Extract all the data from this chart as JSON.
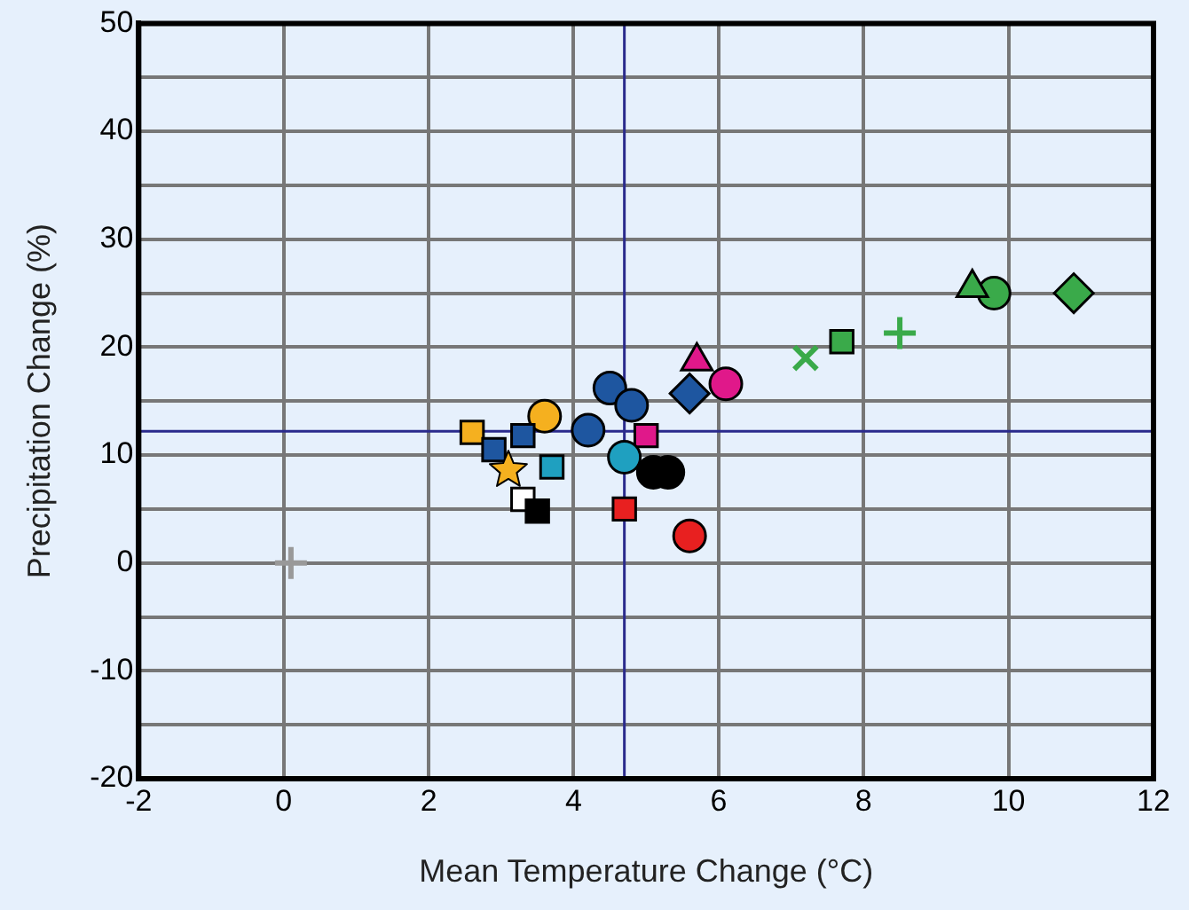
{
  "chart_data": {
    "type": "scatter",
    "xlabel": "Mean Temperature Change (°C)",
    "ylabel": "Precipitation Change (%)",
    "xlim": [
      -2,
      12
    ],
    "xticks": [
      -2,
      0,
      2,
      4,
      6,
      8,
      10,
      12
    ],
    "ylim": [
      -20,
      50
    ],
    "yticks": [
      -20,
      {
        "value": -15,
        "label": null
      },
      -10,
      {
        "value": -5,
        "label": null
      },
      0,
      {
        "value": 5,
        "label": null
      },
      10,
      {
        "value": 15,
        "label": null
      },
      20,
      {
        "value": 25,
        "label": null
      },
      30,
      {
        "value": 35,
        "label": null
      },
      40,
      {
        "value": 45,
        "label": null
      },
      50
    ],
    "grid": true,
    "legend": false,
    "ref_lines": [
      {
        "axis": "x",
        "value": 4.7,
        "label": null,
        "color": "#2a2a8c"
      },
      {
        "axis": "y",
        "value": 12.2,
        "label": null,
        "color": "#2a2a8c"
      }
    ],
    "series": [
      {
        "color": "#999999",
        "marker": "plus",
        "x": [
          0.1
        ],
        "values": [
          0
        ]
      },
      {
        "color": "#3aaa4a",
        "marker": "diamond",
        "x": [
          10.9
        ],
        "values": [
          25
        ]
      },
      {
        "color": "#3aaa4a",
        "marker": "circle",
        "x": [
          9.8
        ],
        "values": [
          25
        ]
      },
      {
        "color": "#3aaa4a",
        "marker": "triangle",
        "x": [
          9.5
        ],
        "values": [
          25.5
        ]
      },
      {
        "color": "#3aaa4a",
        "marker": "plus",
        "x": [
          8.5
        ],
        "values": [
          21.3
        ]
      },
      {
        "color": "#3aaa4a",
        "marker": "square",
        "x": [
          7.7
        ],
        "values": [
          20.5
        ]
      },
      {
        "color": "#3aaa4a",
        "marker": "cross",
        "x": [
          7.2
        ],
        "values": [
          19
        ]
      },
      {
        "color": "#e0188a",
        "marker": "circle",
        "x": [
          6.1
        ],
        "values": [
          16.6
        ]
      },
      {
        "color": "#e0188a",
        "marker": "triangle",
        "x": [
          5.7
        ],
        "values": [
          18.7
        ]
      },
      {
        "color": "#1e56a0",
        "marker": "diamond",
        "x": [
          5.6
        ],
        "values": [
          15.7
        ]
      },
      {
        "color": "#1e56a0",
        "marker": "circle",
        "x": [
          4.5,
          4.8,
          4.2
        ],
        "values": [
          16.2,
          14.6,
          12.3
        ]
      },
      {
        "color": "#e0188a",
        "marker": "square",
        "x": [
          5
        ],
        "values": [
          11.8
        ]
      },
      {
        "color": "#f5b01f",
        "marker": "circle",
        "x": [
          3.6
        ],
        "values": [
          13.6
        ]
      },
      {
        "color": "#f5b01f",
        "marker": "square",
        "x": [
          2.6
        ],
        "values": [
          12.1
        ]
      },
      {
        "color": "#1e56a0",
        "marker": "square",
        "x": [
          2.9,
          3.3
        ],
        "values": [
          10.5,
          11.8
        ]
      },
      {
        "color": "#1fa0c0",
        "marker": "square",
        "x": [
          3.7
        ],
        "values": [
          8.9
        ]
      },
      {
        "color": "#1fa0c0",
        "marker": "circle",
        "x": [
          4.7
        ],
        "values": [
          9.8
        ]
      },
      {
        "color": "#000000",
        "marker": "circle",
        "x": [
          5.1,
          5.3
        ],
        "values": [
          8.4,
          8.4
        ]
      },
      {
        "color": "#f5b01f",
        "marker": "star",
        "x": [
          3.1
        ],
        "values": [
          8.6
        ]
      },
      {
        "color": "#ffffff",
        "marker": "square",
        "x": [
          3.3
        ],
        "values": [
          5.9
        ]
      },
      {
        "color": "#000000",
        "marker": "square",
        "x": [
          3.5
        ],
        "values": [
          4.8
        ]
      },
      {
        "color": "#e82020",
        "marker": "square",
        "x": [
          4.7
        ],
        "values": [
          5
        ]
      },
      {
        "color": "#e82020",
        "marker": "circle",
        "x": [
          5.6
        ],
        "values": [
          2.5
        ]
      }
    ]
  }
}
